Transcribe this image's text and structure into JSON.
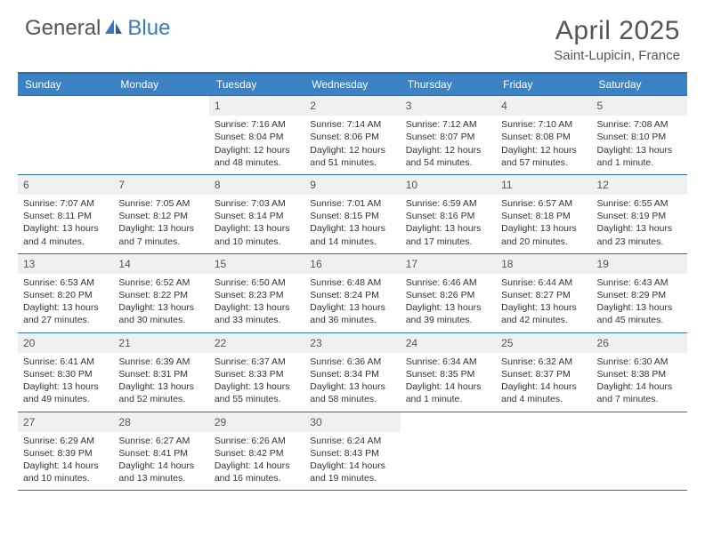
{
  "logo": {
    "general": "General",
    "blue": "Blue"
  },
  "title": {
    "month": "April 2025",
    "location": "Saint-Lupicin, France"
  },
  "colors": {
    "header_bg": "#3b82c4",
    "header_text": "#ffffff",
    "border": "#2f6fa7",
    "daynum_bg": "#eef0f2",
    "text": "#333333",
    "logo_gray": "#555555",
    "logo_blue": "#3b7ab8"
  },
  "weekdays": [
    "Sunday",
    "Monday",
    "Tuesday",
    "Wednesday",
    "Thursday",
    "Friday",
    "Saturday"
  ],
  "weeks": [
    [
      {
        "n": "",
        "sunrise": "",
        "sunset": "",
        "daylight": ""
      },
      {
        "n": "",
        "sunrise": "",
        "sunset": "",
        "daylight": ""
      },
      {
        "n": "1",
        "sunrise": "Sunrise: 7:16 AM",
        "sunset": "Sunset: 8:04 PM",
        "daylight": "Daylight: 12 hours and 48 minutes."
      },
      {
        "n": "2",
        "sunrise": "Sunrise: 7:14 AM",
        "sunset": "Sunset: 8:06 PM",
        "daylight": "Daylight: 12 hours and 51 minutes."
      },
      {
        "n": "3",
        "sunrise": "Sunrise: 7:12 AM",
        "sunset": "Sunset: 8:07 PM",
        "daylight": "Daylight: 12 hours and 54 minutes."
      },
      {
        "n": "4",
        "sunrise": "Sunrise: 7:10 AM",
        "sunset": "Sunset: 8:08 PM",
        "daylight": "Daylight: 12 hours and 57 minutes."
      },
      {
        "n": "5",
        "sunrise": "Sunrise: 7:08 AM",
        "sunset": "Sunset: 8:10 PM",
        "daylight": "Daylight: 13 hours and 1 minute."
      }
    ],
    [
      {
        "n": "6",
        "sunrise": "Sunrise: 7:07 AM",
        "sunset": "Sunset: 8:11 PM",
        "daylight": "Daylight: 13 hours and 4 minutes."
      },
      {
        "n": "7",
        "sunrise": "Sunrise: 7:05 AM",
        "sunset": "Sunset: 8:12 PM",
        "daylight": "Daylight: 13 hours and 7 minutes."
      },
      {
        "n": "8",
        "sunrise": "Sunrise: 7:03 AM",
        "sunset": "Sunset: 8:14 PM",
        "daylight": "Daylight: 13 hours and 10 minutes."
      },
      {
        "n": "9",
        "sunrise": "Sunrise: 7:01 AM",
        "sunset": "Sunset: 8:15 PM",
        "daylight": "Daylight: 13 hours and 14 minutes."
      },
      {
        "n": "10",
        "sunrise": "Sunrise: 6:59 AM",
        "sunset": "Sunset: 8:16 PM",
        "daylight": "Daylight: 13 hours and 17 minutes."
      },
      {
        "n": "11",
        "sunrise": "Sunrise: 6:57 AM",
        "sunset": "Sunset: 8:18 PM",
        "daylight": "Daylight: 13 hours and 20 minutes."
      },
      {
        "n": "12",
        "sunrise": "Sunrise: 6:55 AM",
        "sunset": "Sunset: 8:19 PM",
        "daylight": "Daylight: 13 hours and 23 minutes."
      }
    ],
    [
      {
        "n": "13",
        "sunrise": "Sunrise: 6:53 AM",
        "sunset": "Sunset: 8:20 PM",
        "daylight": "Daylight: 13 hours and 27 minutes."
      },
      {
        "n": "14",
        "sunrise": "Sunrise: 6:52 AM",
        "sunset": "Sunset: 8:22 PM",
        "daylight": "Daylight: 13 hours and 30 minutes."
      },
      {
        "n": "15",
        "sunrise": "Sunrise: 6:50 AM",
        "sunset": "Sunset: 8:23 PM",
        "daylight": "Daylight: 13 hours and 33 minutes."
      },
      {
        "n": "16",
        "sunrise": "Sunrise: 6:48 AM",
        "sunset": "Sunset: 8:24 PM",
        "daylight": "Daylight: 13 hours and 36 minutes."
      },
      {
        "n": "17",
        "sunrise": "Sunrise: 6:46 AM",
        "sunset": "Sunset: 8:26 PM",
        "daylight": "Daylight: 13 hours and 39 minutes."
      },
      {
        "n": "18",
        "sunrise": "Sunrise: 6:44 AM",
        "sunset": "Sunset: 8:27 PM",
        "daylight": "Daylight: 13 hours and 42 minutes."
      },
      {
        "n": "19",
        "sunrise": "Sunrise: 6:43 AM",
        "sunset": "Sunset: 8:29 PM",
        "daylight": "Daylight: 13 hours and 45 minutes."
      }
    ],
    [
      {
        "n": "20",
        "sunrise": "Sunrise: 6:41 AM",
        "sunset": "Sunset: 8:30 PM",
        "daylight": "Daylight: 13 hours and 49 minutes."
      },
      {
        "n": "21",
        "sunrise": "Sunrise: 6:39 AM",
        "sunset": "Sunset: 8:31 PM",
        "daylight": "Daylight: 13 hours and 52 minutes."
      },
      {
        "n": "22",
        "sunrise": "Sunrise: 6:37 AM",
        "sunset": "Sunset: 8:33 PM",
        "daylight": "Daylight: 13 hours and 55 minutes."
      },
      {
        "n": "23",
        "sunrise": "Sunrise: 6:36 AM",
        "sunset": "Sunset: 8:34 PM",
        "daylight": "Daylight: 13 hours and 58 minutes."
      },
      {
        "n": "24",
        "sunrise": "Sunrise: 6:34 AM",
        "sunset": "Sunset: 8:35 PM",
        "daylight": "Daylight: 14 hours and 1 minute."
      },
      {
        "n": "25",
        "sunrise": "Sunrise: 6:32 AM",
        "sunset": "Sunset: 8:37 PM",
        "daylight": "Daylight: 14 hours and 4 minutes."
      },
      {
        "n": "26",
        "sunrise": "Sunrise: 6:30 AM",
        "sunset": "Sunset: 8:38 PM",
        "daylight": "Daylight: 14 hours and 7 minutes."
      }
    ],
    [
      {
        "n": "27",
        "sunrise": "Sunrise: 6:29 AM",
        "sunset": "Sunset: 8:39 PM",
        "daylight": "Daylight: 14 hours and 10 minutes."
      },
      {
        "n": "28",
        "sunrise": "Sunrise: 6:27 AM",
        "sunset": "Sunset: 8:41 PM",
        "daylight": "Daylight: 14 hours and 13 minutes."
      },
      {
        "n": "29",
        "sunrise": "Sunrise: 6:26 AM",
        "sunset": "Sunset: 8:42 PM",
        "daylight": "Daylight: 14 hours and 16 minutes."
      },
      {
        "n": "30",
        "sunrise": "Sunrise: 6:24 AM",
        "sunset": "Sunset: 8:43 PM",
        "daylight": "Daylight: 14 hours and 19 minutes."
      },
      {
        "n": "",
        "sunrise": "",
        "sunset": "",
        "daylight": ""
      },
      {
        "n": "",
        "sunrise": "",
        "sunset": "",
        "daylight": ""
      },
      {
        "n": "",
        "sunrise": "",
        "sunset": "",
        "daylight": ""
      }
    ]
  ]
}
